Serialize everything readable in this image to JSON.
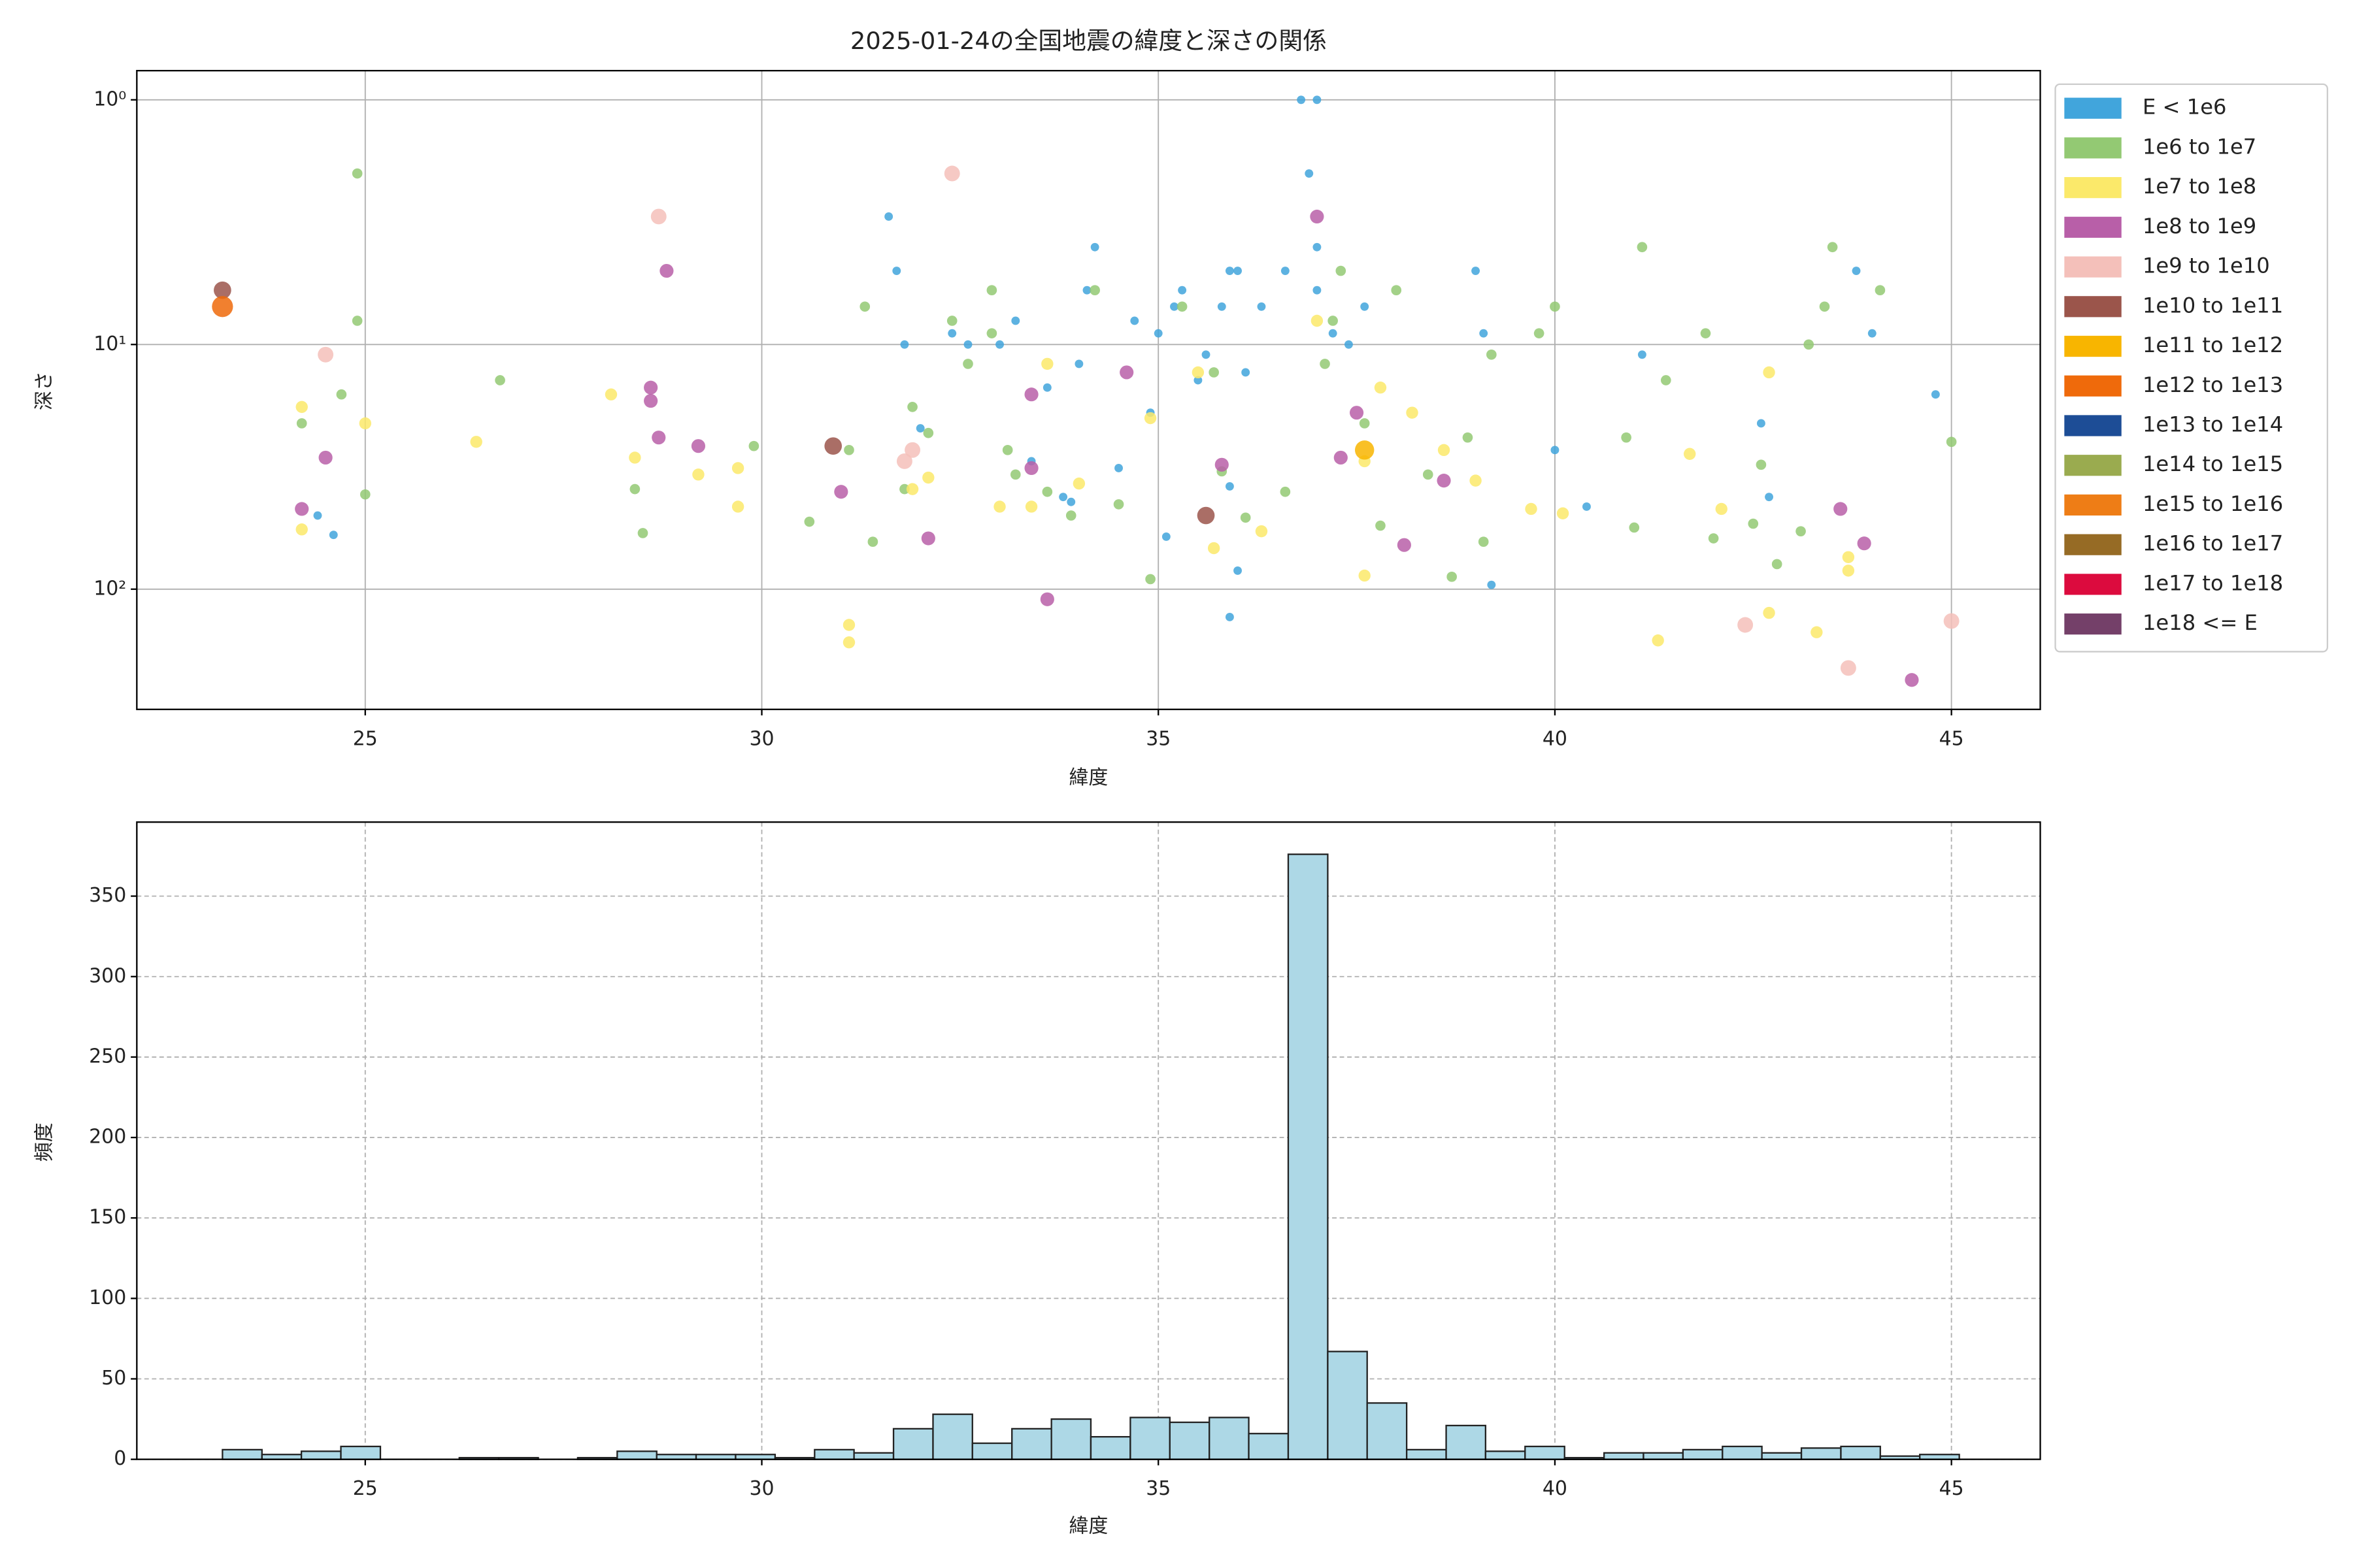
{
  "chart_data": [
    {
      "type": "scatter",
      "title": "2025-01-24の全国地震の緯度と深さの関係",
      "xlabel": "緯度",
      "ylabel": "深さ",
      "xlim": [
        22.12,
        46.12
      ],
      "xticks": [
        25,
        30,
        35,
        40,
        45
      ],
      "ylim": [
        310,
        0.76
      ],
      "log_y": true,
      "yticks": [
        {
          "value": 1,
          "label": "10⁰"
        },
        {
          "value": 10,
          "label": "10¹"
        },
        {
          "value": 100,
          "label": "10²"
        }
      ],
      "grid": true,
      "legend": "outside-right",
      "series": [
        {
          "name": "E < 1e6",
          "color": "#41a5dc",
          "x": [
            24.4,
            24.6,
            31.6,
            31.7,
            31.8,
            32,
            32.4,
            32.6,
            33,
            33.2,
            33.4,
            33.6,
            33.8,
            34,
            34.1,
            34.2,
            34.5,
            34.7,
            34.9,
            35,
            35.1,
            35.2,
            35.3,
            35.5,
            35.6,
            35.8,
            35.9,
            35.9,
            36,
            36.1,
            36.3,
            36.6,
            36.8,
            37,
            36.9,
            37,
            37,
            37.2,
            37.4,
            37.6,
            39,
            39.1,
            39.2,
            40,
            40.4,
            41.1,
            42.6,
            42.7,
            43.8,
            44,
            44.8,
            35.9,
            36,
            33.9
          ],
          "y": [
            50,
            60,
            3,
            5,
            10,
            22,
            9,
            10,
            10,
            8,
            30,
            15,
            42,
            12,
            6,
            4,
            32,
            8,
            19,
            9,
            61,
            7,
            6,
            14,
            11,
            7,
            38,
            5,
            5,
            13,
            7,
            5,
            1,
            1,
            2,
            4,
            6,
            9,
            10,
            7,
            5,
            9,
            96,
            27,
            46,
            11,
            21,
            42,
            5,
            9,
            16,
            130,
            84,
            44
          ]
        },
        {
          "name": "1e6 to 1e7",
          "color": "#93c973",
          "x": [
            24.2,
            24.7,
            24.9,
            24.9,
            25,
            26.7,
            28.4,
            28.5,
            29.9,
            30.6,
            31.1,
            31.3,
            31.4,
            31.8,
            31.9,
            32.1,
            32.4,
            32.6,
            32.9,
            32.9,
            33.1,
            33.2,
            33.6,
            33.9,
            34.2,
            34.5,
            34.9,
            35.3,
            35.7,
            35.8,
            36.1,
            36.6,
            37.1,
            37.2,
            37.3,
            37.6,
            37.8,
            38,
            38.4,
            38.7,
            38.9,
            39.1,
            39.2,
            39.8,
            40,
            40.9,
            41,
            41.1,
            41.4,
            41.9,
            42,
            42.5,
            42.6,
            42.8,
            43.1,
            43.2,
            43.4,
            43.5,
            44.1,
            45
          ],
          "y": [
            21,
            16,
            2,
            8,
            41,
            14,
            39,
            59,
            26,
            53,
            27,
            7,
            64,
            39,
            18,
            23,
            8,
            12,
            6,
            9,
            27,
            34,
            40,
            50,
            6,
            45,
            91,
            7,
            13,
            33,
            51,
            40,
            12,
            8,
            5,
            21,
            55,
            6,
            34,
            89,
            24,
            64,
            11,
            9,
            7,
            24,
            56,
            4,
            14,
            9,
            62,
            54,
            31,
            79,
            58,
            10,
            7,
            4,
            6,
            25
          ]
        },
        {
          "name": "1e7 to 1e8",
          "color": "#fbe96a",
          "x": [
            24.2,
            24.2,
            25,
            26.4,
            28.1,
            28.4,
            29.2,
            29.7,
            29.7,
            31.1,
            31.1,
            31.9,
            32.1,
            33,
            33.4,
            33.6,
            34,
            34.9,
            35.5,
            35.7,
            36.3,
            37,
            37.6,
            37.6,
            37.8,
            38.2,
            38.6,
            39,
            39.7,
            40.1,
            41.3,
            41.7,
            42.1,
            42.7,
            42.7,
            43.3,
            43.7,
            43.7
          ],
          "y": [
            18,
            57,
            21,
            25,
            16,
            29,
            34,
            32,
            46,
            140,
            165,
            39,
            35,
            46,
            46,
            12,
            37,
            20,
            13,
            68,
            58,
            8,
            30,
            88,
            15,
            19,
            27,
            36,
            47,
            49,
            162,
            28,
            47,
            13,
            125,
            150,
            74,
            84
          ]
        },
        {
          "name": "1e8 to 1e9",
          "color": "#b85fa8",
          "x": [
            24.2,
            24.5,
            28.6,
            28.6,
            28.7,
            28.8,
            29.2,
            31,
            32.1,
            33.6,
            34.6,
            35.8,
            37,
            37.5,
            38.1,
            38.6,
            43.6,
            43.9,
            44.5,
            37.3,
            33.4,
            33.4
          ],
          "y": [
            47,
            29,
            15,
            17,
            24,
            5,
            26,
            40,
            62,
            110,
            13,
            31,
            3,
            19,
            66,
            36,
            47,
            65,
            235,
            29,
            16,
            32
          ]
        },
        {
          "name": "1e9 to 1e10",
          "color": "#f4c0ba",
          "x": [
            24.5,
            28.7,
            31.8,
            32.4,
            42.4,
            43.7,
            45,
            31.9
          ],
          "y": [
            11,
            3,
            30,
            2,
            140,
            210,
            135,
            27
          ]
        },
        {
          "name": "1e10 to 1e11",
          "color": "#9b554b",
          "x": [
            23.2,
            30.9,
            35.6
          ],
          "y": [
            6,
            26,
            50
          ]
        },
        {
          "name": "1e11 to 1e12",
          "color": "#f8b500",
          "x": [
            37.6
          ],
          "y": [
            27
          ]
        },
        {
          "name": "1e12 to 1e13",
          "color": "#ef6a0b",
          "x": [
            23.2
          ],
          "y": [
            7
          ]
        },
        {
          "name": "1e13 to 1e14",
          "color": "#1d4d96",
          "x": [],
          "y": []
        },
        {
          "name": "1e14 to 1e15",
          "color": "#9aab4f",
          "x": [],
          "y": []
        },
        {
          "name": "1e15 to 1e16",
          "color": "#ee7d16",
          "x": [],
          "y": []
        },
        {
          "name": "1e16 to 1e17",
          "color": "#966b25",
          "x": [],
          "y": []
        },
        {
          "name": "1e17 to 1e18",
          "color": "#dc0b3e",
          "x": [],
          "y": []
        },
        {
          "name": "1e18 <= E",
          "color": "#744069",
          "x": [],
          "y": []
        }
      ]
    },
    {
      "type": "histogram",
      "xlabel": "緯度",
      "ylabel": "頻度",
      "xlim": [
        22.12,
        46.12
      ],
      "xticks": [
        25,
        30,
        35,
        40,
        45
      ],
      "ylim": [
        0,
        396
      ],
      "yticks": [
        0,
        50,
        100,
        150,
        200,
        250,
        300,
        350
      ],
      "grid": true,
      "grid_style": "dashed",
      "color": "#add8e6",
      "edgecolor": "#222222",
      "bins": [
        23.2,
        23.698,
        24.195,
        24.693,
        25.191,
        25.689,
        26.186,
        26.684,
        27.182,
        27.679,
        28.177,
        28.675,
        29.172,
        29.67,
        30.168,
        30.666,
        31.163,
        31.661,
        32.159,
        32.656,
        33.154,
        33.652,
        34.149,
        34.647,
        35.145,
        35.643,
        36.14,
        36.638,
        37.136,
        37.633,
        38.131,
        38.629,
        39.126,
        39.624,
        40.122,
        40.62,
        41.117,
        41.615,
        42.113,
        42.61,
        43.108,
        43.606,
        44.103,
        44.601,
        45.099
      ],
      "values": [
        6,
        3,
        5,
        8,
        0,
        0,
        1,
        1,
        0,
        1,
        5,
        3,
        3,
        3,
        1,
        6,
        4,
        19,
        28,
        10,
        19,
        25,
        14,
        26,
        23,
        26,
        16,
        376,
        67,
        35,
        6,
        21,
        5,
        8,
        1,
        4,
        4,
        6,
        8,
        4,
        7,
        8,
        2,
        3
      ]
    }
  ]
}
